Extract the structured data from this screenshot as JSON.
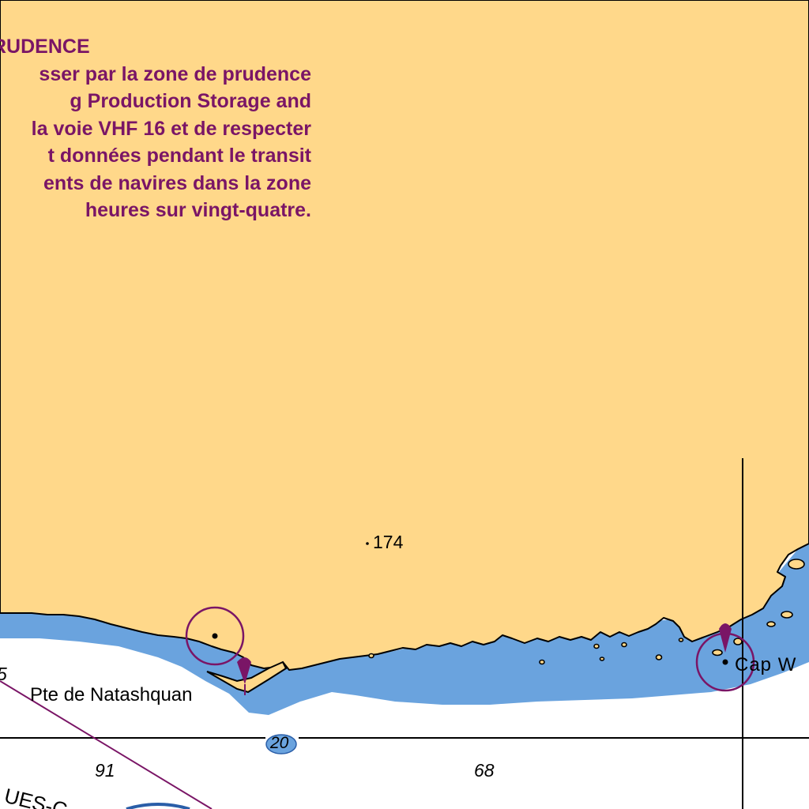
{
  "chart_title": "",
  "colors": {
    "land": "#ffd88a",
    "shallow_water": "#6aa3de",
    "deep_water": "#ffffff",
    "coastline": "#000000",
    "notice_text": "#7a1566",
    "light_symbol": "#7a1566",
    "grid_line": "#000000"
  },
  "notice": {
    "title": "RUDENCE",
    "lines": [
      "sser par la zone de prudence",
      "g Production Storage and",
      "la voie VHF 16 et de respecter",
      "t  données pendant le transit",
      "ents de navires dans la zone",
      " heures sur vingt-quatre."
    ]
  },
  "place_names": {
    "natashquan": "Pte de Natashquan",
    "cap": "Cap W"
  },
  "spot_height": "174",
  "soundings": {
    "s91": "91",
    "s68": "68",
    "s20": "20",
    "s5": "5"
  },
  "lane_label": "UES-C",
  "light_symbols": [
    "light-natashquan",
    "light-cap"
  ]
}
